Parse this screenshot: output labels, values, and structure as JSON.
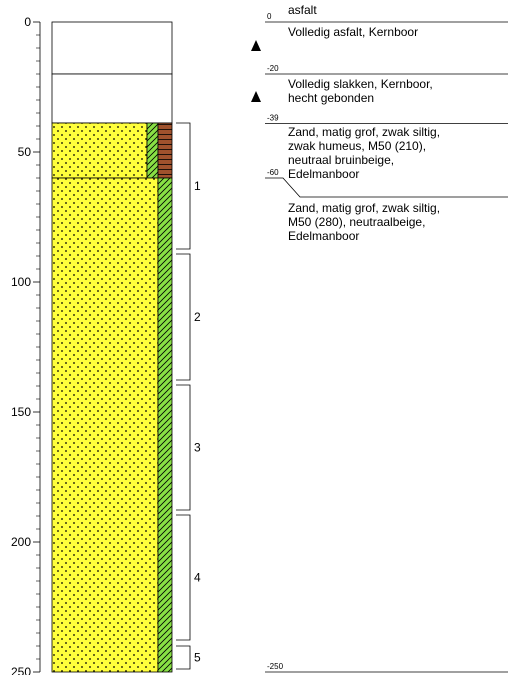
{
  "axis": {
    "ticks": [
      0,
      50,
      100,
      150,
      200,
      250
    ]
  },
  "boundaries": [
    0,
    -20,
    -39,
    -60,
    -250
  ],
  "descriptions": [
    {
      "lines": [
        "asfalt"
      ]
    },
    {
      "lines": [
        "Volledig asfalt, Kernboor"
      ]
    },
    {
      "lines": [
        "Volledig slakken, Kernboor,",
        "hecht gebonden"
      ]
    },
    {
      "lines": [
        "Zand, matig grof, zwak siltig,",
        "zwak humeus, M50 (210),",
        "neutraal bruinbeige,",
        "Edelmanboor"
      ]
    },
    {
      "lines": [
        "Zand, matig grof, zwak siltig,",
        "M50 (280), neutraalbeige,",
        "Edelmanboor"
      ]
    }
  ],
  "samples": [
    1,
    2,
    3,
    4,
    5
  ]
}
